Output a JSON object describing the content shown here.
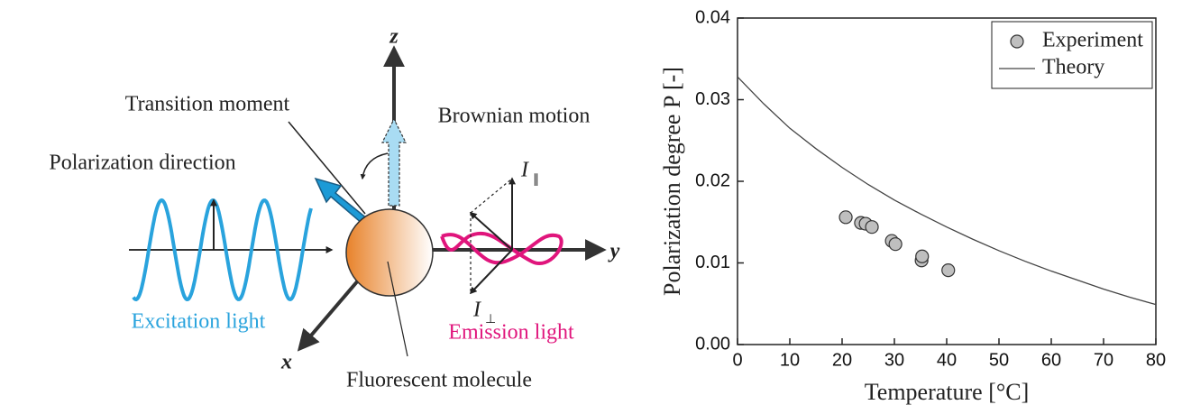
{
  "diagram": {
    "axis_z": "z",
    "axis_y": "y",
    "axis_x": "x",
    "transition_moment": "Transition moment",
    "brownian_motion": "Brownian motion",
    "polarization_direction": "Polarization direction",
    "i_parallel": {
      "main": "I",
      "sub": "∥"
    },
    "i_perp": {
      "main": "I",
      "sub": "⊥"
    },
    "excitation_light": "Excitation light",
    "emission_light": "Emission light",
    "fluorescent_molecule": "Fluorescent molecule"
  },
  "chart_data": {
    "type": "scatter",
    "xlabel": "Temperature [°C]",
    "ylabel": "Polarization degree P [-]",
    "xlim": [
      0,
      80
    ],
    "xticks": [
      0,
      10,
      20,
      30,
      40,
      50,
      60,
      70,
      80
    ],
    "ylim": [
      0,
      0.04
    ],
    "yticks": [
      {
        "value": 0,
        "label": "0.00"
      },
      0.01,
      0.02,
      0.03,
      0.04
    ],
    "legend": "upper right",
    "series": [
      {
        "name": "Experiment",
        "type": "scatter",
        "color": "#bfbfbf",
        "x": [
          20.7,
          23.6,
          24.5,
          25.7,
          29.5,
          30.2,
          35.2,
          35.3,
          40.3
        ],
        "values": [
          0.0156,
          0.0149,
          0.0148,
          0.0144,
          0.0127,
          0.0123,
          0.0103,
          0.0108,
          0.0091
        ]
      },
      {
        "name": "Theory",
        "type": "line",
        "color": "#444444",
        "x": [
          0,
          5,
          10,
          15,
          20,
          25,
          30,
          35,
          40,
          45,
          50,
          55,
          60,
          65,
          70,
          75,
          80
        ],
        "values": [
          0.0328,
          0.0295,
          0.0265,
          0.024,
          0.0217,
          0.0196,
          0.0177,
          0.016,
          0.0144,
          0.0129,
          0.0115,
          0.0102,
          0.009,
          0.0079,
          0.0068,
          0.0058,
          0.0049
        ]
      }
    ]
  }
}
